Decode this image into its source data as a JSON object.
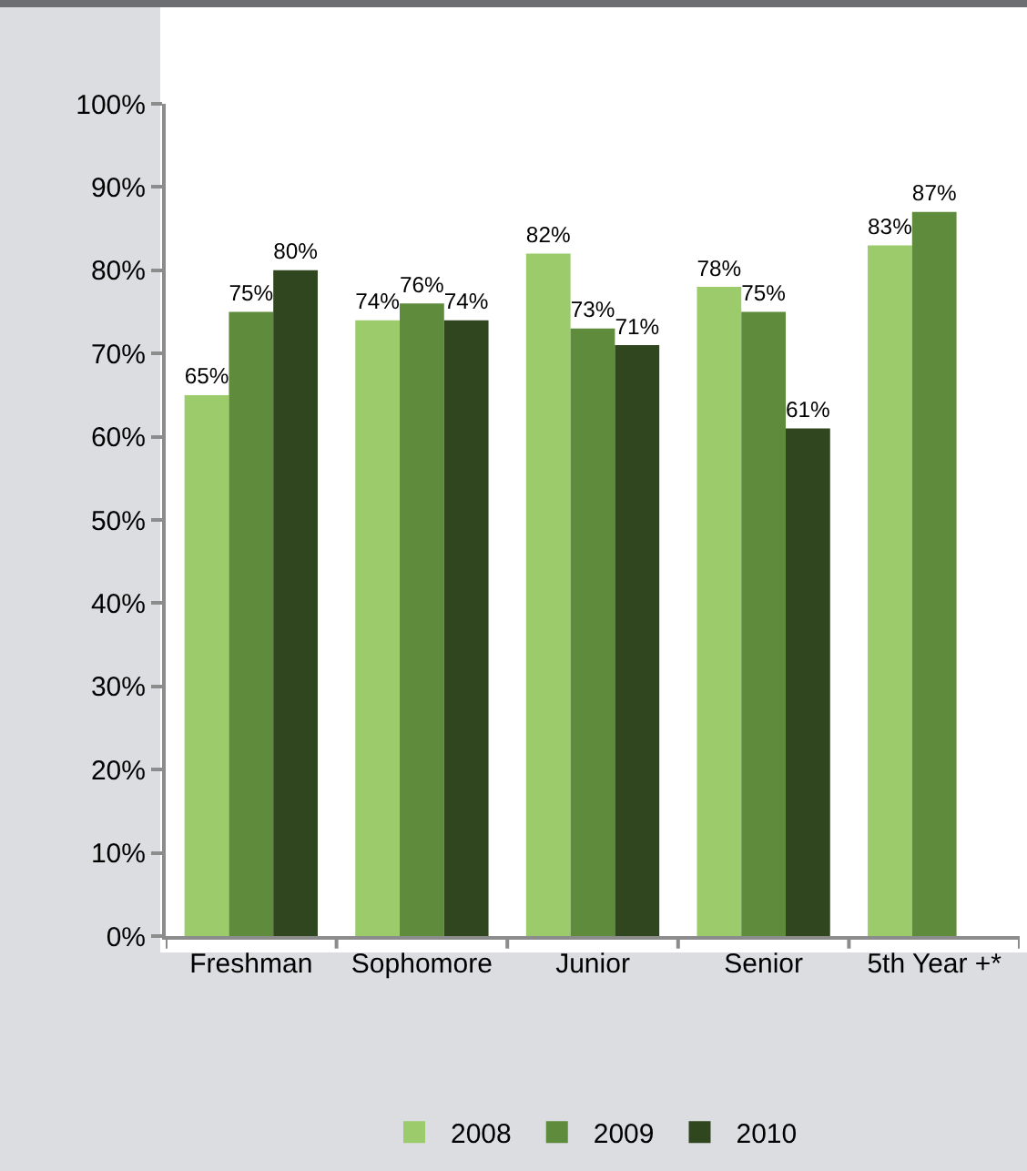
{
  "chart_data": {
    "type": "bar",
    "categories": [
      "Freshman",
      "Sophomore",
      "Junior",
      "Senior",
      "5th Year +*"
    ],
    "series": [
      {
        "name": "2008",
        "color": "#9bcb6b",
        "values": [
          65,
          74,
          82,
          78,
          83
        ],
        "value_labels": [
          "65%",
          "74%",
          "82%",
          "78%",
          "83%"
        ]
      },
      {
        "name": "2009",
        "color": "#5e8b3c",
        "values": [
          75,
          76,
          73,
          75,
          87
        ],
        "value_labels": [
          "75%",
          "76%",
          "73%",
          "75%",
          "87%"
        ]
      },
      {
        "name": "2010",
        "color": "#30461f",
        "values": [
          80,
          74,
          71,
          61,
          null
        ],
        "value_labels": [
          "80%",
          "74%",
          "71%",
          "61%",
          null
        ]
      }
    ],
    "ylim": [
      0,
      100
    ],
    "yticks": [
      {
        "value": 0,
        "label": "0%"
      },
      {
        "value": 10,
        "label": "10%"
      },
      {
        "value": 20,
        "label": "20%"
      },
      {
        "value": 30,
        "label": "30%"
      },
      {
        "value": 40,
        "label": "40%"
      },
      {
        "value": 50,
        "label": "50%"
      },
      {
        "value": 60,
        "label": "60%"
      },
      {
        "value": 70,
        "label": "70%"
      },
      {
        "value": 80,
        "label": "80%"
      },
      {
        "value": 90,
        "label": "90%"
      },
      {
        "value": 100,
        "label": "100%"
      }
    ],
    "grid": false,
    "legend": "bottom"
  }
}
